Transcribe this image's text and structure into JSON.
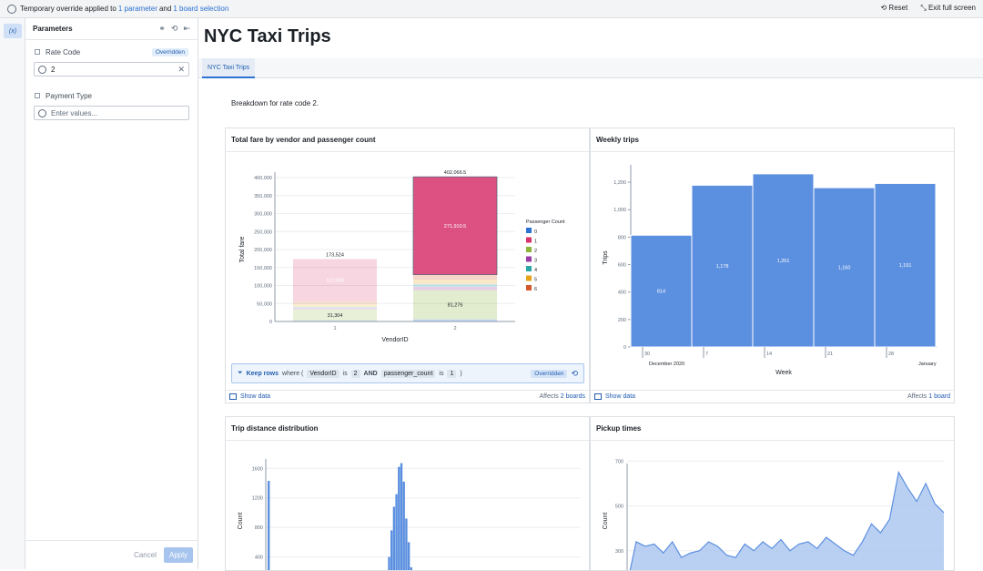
{
  "topbar": {
    "prefix": "Temporary override applied to",
    "link1": "1 parameter",
    "mid": "and",
    "link2": "1 board selection",
    "reset": "Reset",
    "exit": "Exit full screen"
  },
  "rail": {
    "button": "(x)"
  },
  "parameters": {
    "title": "Parameters",
    "rate_code": {
      "label": "Rate Code",
      "badge": "Overridden",
      "value": "2"
    },
    "payment_type": {
      "label": "Payment Type",
      "placeholder": "Enter values..."
    },
    "cancel": "Cancel",
    "apply": "Apply"
  },
  "page": {
    "title": "NYC Taxi Trips",
    "tab": "NYC Taxi Trips",
    "intro": "Breakdown for rate code 2."
  },
  "fare_card": {
    "title": "Total fare by vendor and passenger count",
    "filter": {
      "keep": "Keep rows",
      "where": "where (",
      "field1": "VendorID",
      "is1": "is",
      "val1": "2",
      "and": "AND",
      "field2": "passenger_count",
      "is2": "is",
      "val2": "1",
      "close": ")",
      "badge": "Overridden"
    },
    "show": "Show data",
    "affects_prefix": "Affects",
    "affects_link": "2 boards"
  },
  "weekly_card": {
    "title": "Weekly trips",
    "show": "Show data",
    "affects_prefix": "Affects",
    "affects_link": "1 board"
  },
  "distance_card": {
    "title": "Trip distance distribution"
  },
  "pickup_card": {
    "title": "Pickup times"
  },
  "colors": {
    "accent": "#2d72d2",
    "bar": "#5b8fdf",
    "p0": "#2d72d2",
    "p1": "#d6336c",
    "p2": "#8cb53a",
    "p3": "#9b3ba8",
    "p4": "#2aa6a6",
    "p5": "#e6a21a",
    "p6": "#d5582c"
  },
  "chart_data": [
    {
      "type": "bar",
      "title": "Total fare by vendor and passenger count",
      "xlabel": "VendorID",
      "ylabel": "Total fare",
      "categories": [
        "1",
        "2"
      ],
      "ylim": [
        0,
        400000
      ],
      "yticks": [
        "0",
        "50,000",
        "100,000",
        "150,000",
        "200,000",
        "250,000",
        "300,000",
        "350,000",
        "400,000"
      ],
      "totals": [
        173524,
        402066.5
      ],
      "total_labels": [
        "173,524",
        "402,066.5"
      ],
      "legend_title": "Passenger Count",
      "series": [
        {
          "name": "0",
          "values": [
            2000,
            6000
          ]
        },
        {
          "name": "1",
          "values": [
            117000,
            271910.5
          ],
          "labels": [
            "117,000",
            "271,910.5"
          ]
        },
        {
          "name": "2",
          "values": [
            31304,
            81276
          ],
          "labels": [
            "31,304",
            "81,276"
          ]
        },
        {
          "name": "3",
          "values": [
            4000,
            9000
          ]
        },
        {
          "name": "4",
          "values": [
            3000,
            8000
          ]
        },
        {
          "name": "5",
          "values": [
            9000,
            12000
          ]
        },
        {
          "name": "6",
          "values": [
            7220,
            13880
          ]
        }
      ]
    },
    {
      "type": "bar",
      "title": "Weekly trips",
      "xlabel": "Week",
      "ylabel": "Trips",
      "categories": [
        "30",
        "7",
        "14",
        "21",
        "28"
      ],
      "values": [
        814,
        1178,
        1261,
        1160,
        1191
      ],
      "value_labels": [
        "814",
        "1,178",
        "1,261",
        "1,160",
        "1,191"
      ],
      "ylim": [
        0,
        1300
      ],
      "yticks": [
        "0",
        "200",
        "400",
        "600",
        "800",
        "1,000",
        "1,200"
      ],
      "sub_labels": [
        "December 2020",
        "January"
      ]
    },
    {
      "type": "bar",
      "title": "Trip distance distribution",
      "ylabel": "Count",
      "yticks": [
        "400",
        "800",
        "1200",
        "1600"
      ],
      "values": [
        1430,
        0,
        0,
        0,
        0,
        0,
        0,
        0,
        0,
        0,
        0,
        0,
        0,
        0,
        0,
        0,
        0,
        0,
        0,
        0,
        0,
        0,
        0,
        0,
        0,
        0,
        0,
        0,
        0,
        0,
        0,
        0,
        0,
        0,
        0,
        0,
        0,
        0,
        0,
        0,
        0,
        0,
        0,
        0,
        0,
        0,
        0,
        90,
        170,
        400,
        760,
        1080,
        1250,
        1620,
        1670,
        1420,
        920,
        600,
        260,
        110,
        50
      ]
    },
    {
      "type": "area",
      "title": "Pickup times",
      "ylabel": "Count",
      "yticks": [
        "300",
        "500",
        "700"
      ],
      "values": [
        150,
        340,
        320,
        330,
        290,
        340,
        270,
        290,
        300,
        340,
        320,
        280,
        270,
        330,
        300,
        340,
        310,
        350,
        300,
        330,
        340,
        310,
        360,
        330,
        300,
        280,
        340,
        420,
        380,
        440,
        650,
        580,
        520,
        600,
        510,
        470
      ]
    }
  ]
}
